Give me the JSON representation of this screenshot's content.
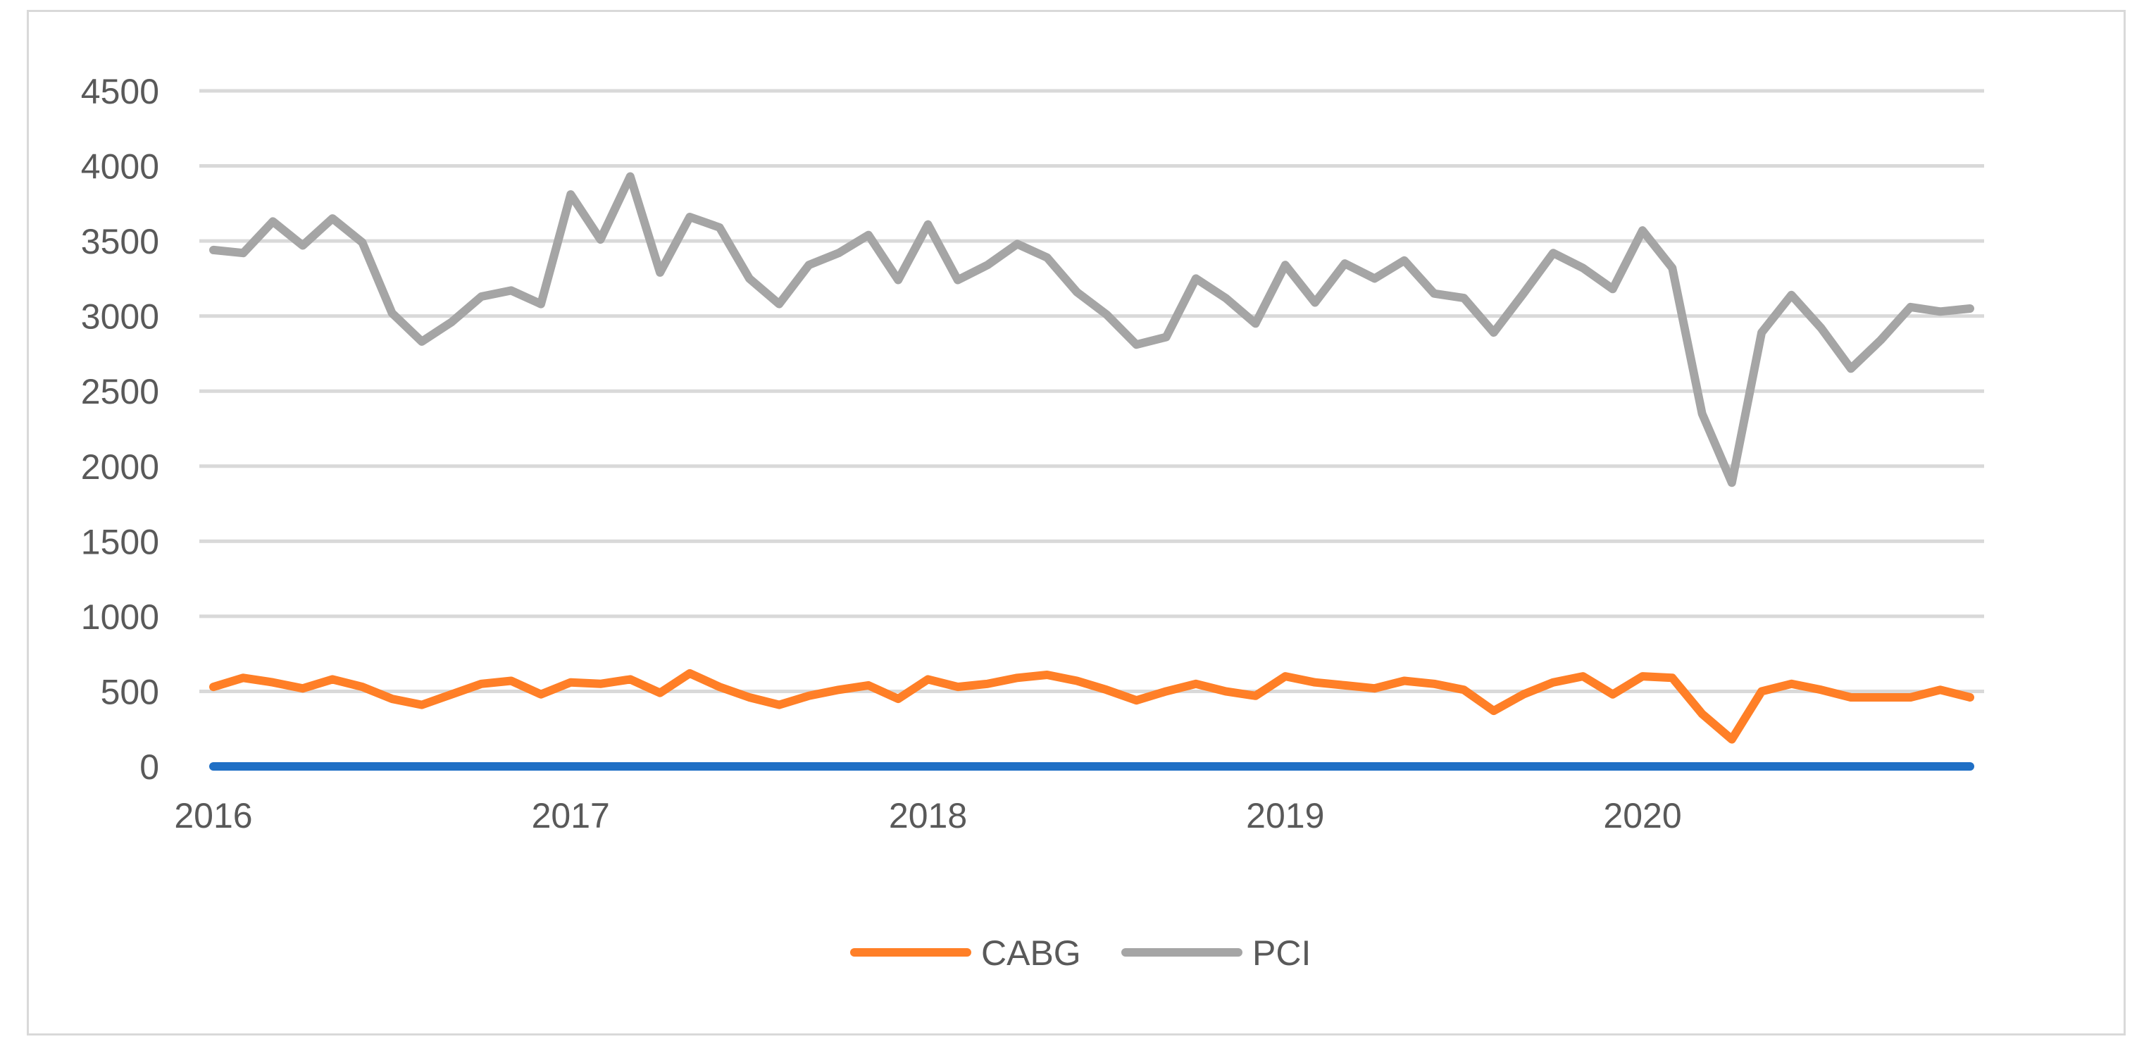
{
  "chart_data": {
    "type": "line",
    "title": "",
    "xlabel": "",
    "ylabel": "",
    "ylim": [
      0,
      4500
    ],
    "y_ticks": [
      0,
      500,
      1000,
      1500,
      2000,
      2500,
      3000,
      3500,
      4000,
      4500
    ],
    "y_tick_labels": [
      "0",
      "500",
      "1000",
      "1500",
      "2000",
      "2500",
      "3000",
      "3500",
      "4000",
      "4500"
    ],
    "x_tick_labels": [
      "2016",
      "2017",
      "2018",
      "2019",
      "2020"
    ],
    "x_tick_month_index": [
      0,
      12,
      24,
      36,
      48
    ],
    "n_months": 60,
    "grid": true,
    "legend_position": "bottom",
    "zero_line_color": "#1f6fc5",
    "series": [
      {
        "name": "CABG",
        "color": "#ff7f27",
        "values": [
          530,
          590,
          560,
          520,
          580,
          530,
          450,
          410,
          480,
          550,
          570,
          480,
          560,
          550,
          580,
          490,
          620,
          530,
          460,
          410,
          470,
          510,
          540,
          450,
          580,
          530,
          550,
          590,
          610,
          570,
          510,
          440,
          500,
          550,
          500,
          470,
          600,
          560,
          540,
          520,
          570,
          550,
          510,
          370,
          480,
          560,
          600,
          480,
          600,
          590,
          350,
          180,
          500,
          550,
          510,
          460,
          460,
          460,
          510,
          460
        ]
      },
      {
        "name": "PCI",
        "color": "#a5a5a5",
        "values": [
          3440,
          3420,
          3630,
          3470,
          3650,
          3490,
          3020,
          2830,
          2960,
          3130,
          3170,
          3080,
          3810,
          3510,
          3930,
          3290,
          3660,
          3590,
          3250,
          3080,
          3340,
          3420,
          3540,
          3240,
          3610,
          3240,
          3340,
          3480,
          3390,
          3160,
          3010,
          2810,
          2860,
          3250,
          3120,
          2950,
          3340,
          3090,
          3350,
          3250,
          3370,
          3150,
          3120,
          2890,
          3150,
          3420,
          3320,
          3180,
          3570,
          3320,
          2350,
          1890,
          2890,
          3140,
          2920,
          2650,
          2840,
          3060,
          3030,
          3050
        ]
      }
    ]
  }
}
